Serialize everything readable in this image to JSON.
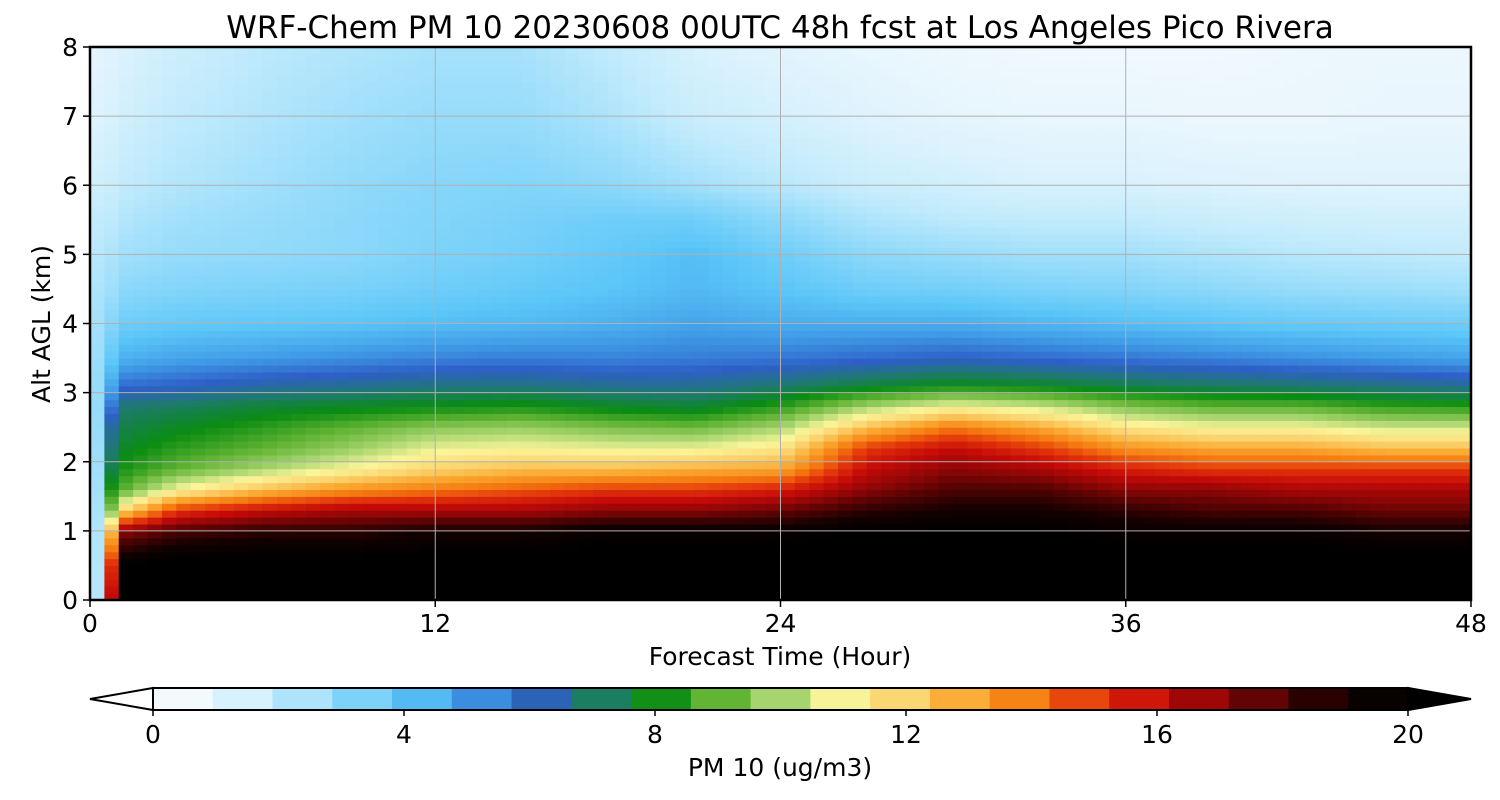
{
  "chart_data": {
    "type": "heatmap",
    "title": "WRF-Chem PM 10  20230608 00UTC 48h fcst at Los Angeles Pico Rivera",
    "xlabel": "Forecast Time (Hour)",
    "ylabel": "Alt AGL (km)",
    "xlim": [
      0,
      48
    ],
    "ylim": [
      0,
      8
    ],
    "xticks": [
      0,
      12,
      24,
      36,
      48
    ],
    "yticks": [
      0,
      1,
      2,
      3,
      4,
      5,
      6,
      7,
      8
    ],
    "grid": true,
    "colorbar": {
      "label": "PM 10  (ug/m3)",
      "range": [
        0,
        20
      ],
      "ticks": [
        0,
        4,
        8,
        12,
        16,
        20
      ],
      "extend": "both",
      "colors": [
        "#ffffff",
        "#e6f5fd",
        "#c2ebfc",
        "#8cd8fa",
        "#5bc6f8",
        "#3f9be6",
        "#2e5fc8",
        "#1e7a6e",
        "#0a8c12",
        "#5fb232",
        "#a6d46e",
        "#fbf59a",
        "#fbd470",
        "#faa830",
        "#f57a0f",
        "#e3360b",
        "#c50a08",
        "#8c0606",
        "#4a0202",
        "#120000",
        "#000000"
      ]
    },
    "profiles_note": "PM10 (ug/m3) vs altitude (km); rows are forecast hours",
    "z_levels_km": [
      0,
      0.5,
      1,
      1.3,
      1.6,
      1.9,
      2.2,
      2.5,
      2.8,
      3.1,
      3.5,
      4,
      4.5,
      5,
      5.5,
      6,
      7,
      8
    ],
    "times_h": [
      0,
      0.4,
      0.8,
      1.2,
      3,
      6,
      9,
      12,
      15,
      18,
      21,
      24,
      27,
      30,
      33,
      36,
      39,
      42,
      45,
      48
    ],
    "values": [
      [
        1.0,
        1.0,
        1.2,
        1.5,
        1.8,
        2.0,
        2.2,
        2.4,
        2.5,
        2.6,
        2.6,
        2.5,
        2.4,
        2.2,
        2.0,
        1.6,
        1.2,
        1.0
      ],
      [
        3.0,
        3.0,
        3.0,
        3.0,
        3.0,
        3.0,
        3.0,
        3.0,
        3.0,
        2.9,
        2.8,
        2.6,
        2.4,
        2.2,
        2.0,
        1.7,
        1.3,
        1.1
      ],
      [
        18.0,
        17.0,
        14.0,
        10.5,
        9.0,
        8.0,
        7.5,
        7.0,
        6.0,
        5.0,
        4.0,
        3.2,
        2.7,
        2.4,
        2.1,
        1.8,
        1.4,
        1.2
      ],
      [
        20.0,
        20.0,
        17.0,
        12.0,
        9.0,
        8.2,
        7.8,
        7.4,
        7.0,
        5.8,
        4.5,
        3.6,
        3.0,
        2.6,
        2.3,
        2.0,
        1.6,
        1.3
      ],
      [
        20.5,
        20.5,
        18.0,
        15.0,
        11.0,
        9.0,
        8.4,
        7.8,
        7.2,
        6.0,
        4.8,
        3.8,
        3.2,
        2.8,
        2.6,
        2.3,
        2.0,
        1.7
      ],
      [
        20.5,
        20.5,
        18.5,
        16.0,
        12.5,
        10.0,
        9.0,
        8.4,
        7.6,
        6.4,
        5.0,
        3.9,
        3.3,
        2.9,
        2.8,
        2.6,
        2.3,
        2.1
      ],
      [
        20.5,
        20.5,
        18.5,
        16.5,
        13.5,
        11.0,
        9.8,
        9.0,
        7.8,
        6.6,
        5.2,
        4.0,
        3.4,
        3.0,
        3.0,
        2.9,
        2.6,
        2.3
      ],
      [
        20.5,
        20.5,
        19.0,
        16.5,
        14.0,
        12.0,
        10.8,
        9.6,
        8.0,
        6.8,
        5.4,
        4.2,
        3.6,
        3.3,
        3.2,
        3.1,
        2.8,
        2.5
      ],
      [
        20.5,
        20.5,
        19.0,
        16.5,
        14.5,
        12.5,
        11.0,
        9.8,
        8.2,
        6.8,
        5.5,
        4.3,
        3.8,
        3.5,
        3.4,
        3.2,
        2.8,
        2.5
      ],
      [
        20.5,
        20.5,
        19.5,
        17.0,
        15.0,
        12.5,
        10.8,
        9.4,
        7.8,
        6.6,
        5.4,
        4.5,
        4.0,
        3.8,
        3.6,
        3.0,
        2.4,
        2.0
      ],
      [
        20.5,
        20.5,
        19.5,
        17.0,
        15.0,
        12.8,
        10.8,
        9.2,
        7.6,
        6.6,
        5.5,
        4.8,
        4.3,
        4.2,
        3.6,
        2.6,
        1.8,
        1.4
      ],
      [
        20.5,
        20.5,
        19.5,
        17.5,
        15.5,
        13.0,
        11.5,
        10.0,
        8.4,
        7.0,
        5.6,
        4.6,
        4.0,
        3.6,
        3.0,
        2.2,
        1.5,
        1.1
      ],
      [
        20.5,
        20.5,
        20.0,
        18.5,
        17.0,
        16.0,
        15.0,
        12.5,
        10.0,
        7.6,
        5.8,
        4.6,
        3.6,
        3.0,
        2.4,
        1.8,
        1.2,
        0.9
      ],
      [
        20.5,
        20.5,
        20.0,
        19.0,
        18.0,
        17.0,
        16.0,
        14.0,
        11.0,
        8.0,
        6.0,
        4.6,
        3.5,
        2.8,
        2.1,
        1.6,
        1.0,
        0.7
      ],
      [
        20.5,
        20.5,
        20.0,
        19.0,
        18.0,
        16.5,
        15.0,
        13.0,
        10.5,
        7.8,
        5.8,
        4.4,
        3.3,
        2.6,
        2.0,
        1.4,
        0.9,
        0.6
      ],
      [
        20.5,
        20.5,
        19.5,
        18.5,
        17.0,
        15.5,
        13.5,
        11.5,
        9.5,
        7.4,
        5.6,
        4.2,
        3.2,
        2.6,
        2.0,
        1.4,
        0.9,
        0.6
      ],
      [
        20.5,
        20.5,
        19.5,
        18.0,
        17.0,
        15.0,
        13.0,
        11.0,
        9.0,
        7.2,
        5.4,
        4.0,
        3.0,
        2.4,
        1.8,
        1.3,
        0.8,
        0.6
      ],
      [
        20.5,
        20.5,
        19.5,
        18.0,
        16.5,
        15.0,
        13.0,
        11.0,
        9.0,
        7.0,
        5.2,
        3.8,
        2.8,
        2.2,
        1.7,
        1.2,
        0.8,
        0.7
      ],
      [
        20.5,
        20.5,
        19.0,
        17.5,
        16.5,
        15.0,
        12.5,
        10.5,
        8.5,
        6.8,
        5.0,
        3.7,
        2.7,
        2.1,
        1.6,
        1.2,
        0.9,
        0.8
      ],
      [
        20.5,
        20.5,
        19.0,
        17.5,
        16.5,
        15.0,
        12.5,
        10.5,
        8.4,
        6.6,
        4.8,
        3.6,
        2.6,
        2.0,
        1.6,
        1.2,
        0.9,
        0.8
      ]
    ]
  }
}
